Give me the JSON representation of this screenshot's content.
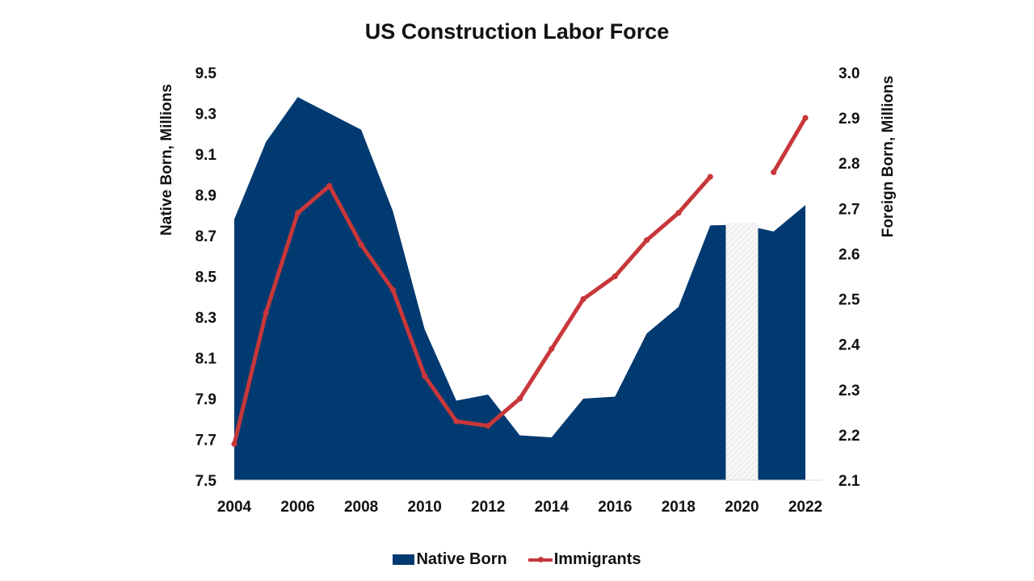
{
  "chart_data": {
    "type": "area+line",
    "title": "US Construction Labor Force",
    "xlabel": "",
    "ylabel_left": "Native Born, Millions",
    "ylabel_right": "Foreign Born, Millions",
    "x": [
      2004,
      2005,
      2006,
      2007,
      2008,
      2009,
      2010,
      2011,
      2012,
      2013,
      2014,
      2015,
      2016,
      2017,
      2018,
      2019,
      2020,
      2021,
      2022
    ],
    "x_tick_labels": [
      "2004",
      "2006",
      "2008",
      "2010",
      "2012",
      "2014",
      "2016",
      "2018",
      "2020",
      "2022"
    ],
    "ylim_left": [
      7.5,
      9.5
    ],
    "y_ticks_left": [
      "7.5",
      "7.7",
      "7.9",
      "8.1",
      "8.3",
      "8.5",
      "8.7",
      "8.9",
      "9.1",
      "9.3",
      "9.5"
    ],
    "ylim_right": [
      2.1,
      3.0
    ],
    "y_ticks_right": [
      "2.1",
      "2.2",
      "2.3",
      "2.4",
      "2.5",
      "2.6",
      "2.7",
      "2.8",
      "2.9",
      "3.0"
    ],
    "series": [
      {
        "name": "Native Born",
        "type": "area",
        "axis": "left",
        "color": "#003A70",
        "values": [
          8.78,
          9.16,
          9.38,
          9.3,
          9.22,
          8.82,
          8.24,
          7.89,
          7.92,
          7.72,
          7.71,
          7.9,
          7.91,
          8.22,
          8.35,
          8.75,
          null,
          8.72,
          8.85
        ]
      },
      {
        "name": "Immigrants",
        "type": "line",
        "axis": "right",
        "color": "#C8373A",
        "values": [
          2.18,
          2.47,
          2.69,
          2.75,
          2.62,
          2.52,
          2.33,
          2.23,
          2.22,
          2.28,
          2.39,
          2.5,
          2.55,
          2.63,
          2.69,
          2.77,
          null,
          2.78,
          2.9
        ]
      }
    ],
    "annotations": [
      {
        "type": "hatched-gap",
        "x": 2020,
        "note": "2020 data omitted (hatched light band)"
      }
    ],
    "grid": false,
    "legend_position": "bottom"
  },
  "legend": {
    "items": [
      {
        "label": "Native Born",
        "color": "#003A70"
      },
      {
        "label": "Immigrants",
        "color": "#C8373A"
      }
    ]
  }
}
